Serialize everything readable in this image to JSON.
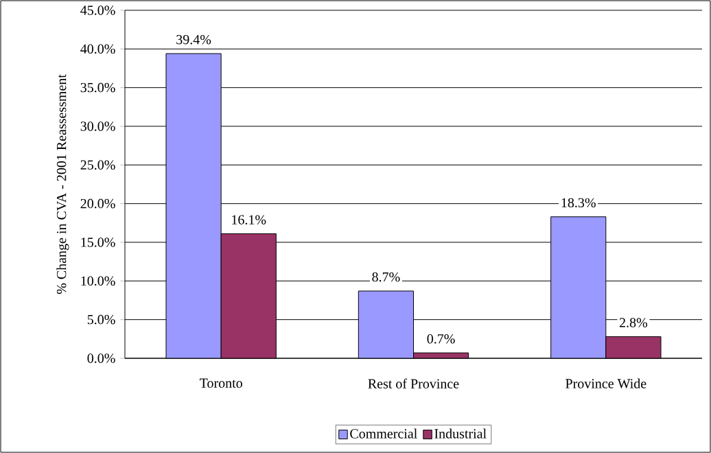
{
  "chart_data": {
    "type": "bar",
    "ylabel": "% Change in CVA - 2001 Reassessment",
    "categories": [
      "Toronto",
      "Rest of Province",
      "Province Wide"
    ],
    "series": [
      {
        "name": "Commercial",
        "color": "#9999ff",
        "values": [
          39.4,
          8.7,
          18.3
        ],
        "value_labels": [
          "39.4%",
          "8.7%",
          "18.3%"
        ]
      },
      {
        "name": "Industrial",
        "color": "#993366",
        "values": [
          16.1,
          0.7,
          2.8
        ],
        "value_labels": [
          "16.1%",
          "0.7%",
          "2.8%"
        ]
      }
    ],
    "ylim": [
      0,
      45
    ],
    "yticks": [
      {
        "value": 0,
        "label": "0.0%"
      },
      {
        "value": 5,
        "label": "5.0%"
      },
      {
        "value": 10,
        "label": "10.0%"
      },
      {
        "value": 15,
        "label": "15.0%"
      },
      {
        "value": 20,
        "label": "20.0%"
      },
      {
        "value": 25,
        "label": "25.0%"
      },
      {
        "value": 30,
        "label": "30.0%"
      },
      {
        "value": 35,
        "label": "35.0%"
      },
      {
        "value": 40,
        "label": "40.0%"
      },
      {
        "value": 45,
        "label": "45.0%"
      }
    ],
    "grid": "y",
    "legend": "bottom"
  }
}
